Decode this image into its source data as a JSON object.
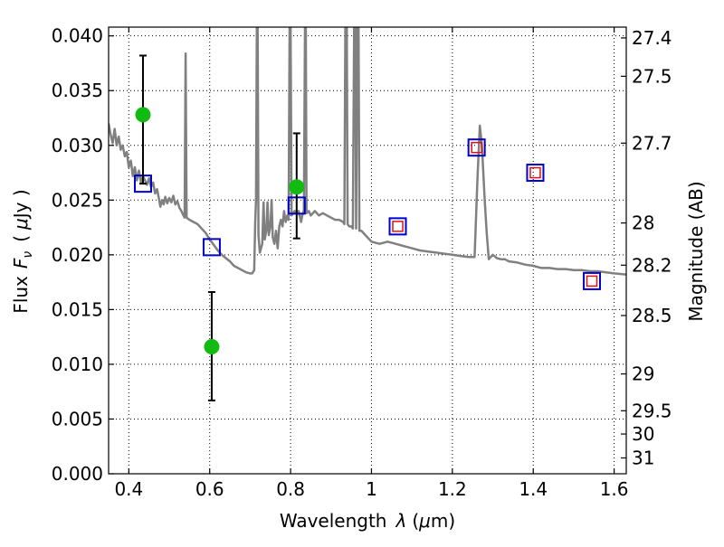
{
  "chart_data": {
    "type": "scatter",
    "xlabel": "Wavelength",
    "xlabel_symbol": "λ",
    "xlabel_unit_open": "(",
    "xlabel_unit_mu": "μ",
    "xlabel_unit_rest": "m)",
    "ylabel": "Flux",
    "ylabel_symbol": "F",
    "ylabel_subscript": "ν",
    "ylabel_unit_open": "(",
    "ylabel_unit_mu": "μ",
    "ylabel_unit_rest": "Jy )",
    "y2label": "Magnitude (AB)",
    "xlim": [
      0.35,
      1.63
    ],
    "ylim": [
      0.0,
      0.0408
    ],
    "grid": true,
    "x_ticks": [
      {
        "value": 0.4,
        "label": "0.4"
      },
      {
        "value": 0.6,
        "label": "0.6"
      },
      {
        "value": 0.8,
        "label": "0.8"
      },
      {
        "value": 1.0,
        "label": "1"
      },
      {
        "value": 1.2,
        "label": "1.2"
      },
      {
        "value": 1.4,
        "label": "1.4"
      },
      {
        "value": 1.6,
        "label": "1.6"
      }
    ],
    "y_ticks": [
      {
        "value": 0.0,
        "label": "0.000"
      },
      {
        "value": 0.005,
        "label": "0.005"
      },
      {
        "value": 0.01,
        "label": "0.010"
      },
      {
        "value": 0.015,
        "label": "0.015"
      },
      {
        "value": 0.02,
        "label": "0.020"
      },
      {
        "value": 0.025,
        "label": "0.025"
      },
      {
        "value": 0.03,
        "label": "0.030"
      },
      {
        "value": 0.035,
        "label": "0.035"
      },
      {
        "value": 0.04,
        "label": "0.040"
      }
    ],
    "y2_ticks": [
      {
        "mag": 27.4,
        "label": "27.4"
      },
      {
        "mag": 27.5,
        "label": "27.5"
      },
      {
        "mag": 27.7,
        "label": "27.7"
      },
      {
        "mag": 28.0,
        "label": "28"
      },
      {
        "mag": 28.2,
        "label": "28.2"
      },
      {
        "mag": 28.5,
        "label": "28.5"
      },
      {
        "mag": 29.0,
        "label": "29"
      },
      {
        "mag": 29.5,
        "label": "29.5"
      },
      {
        "mag": 30.0,
        "label": "30"
      },
      {
        "mag": 31.0,
        "label": "31"
      }
    ],
    "model_spectrum": {
      "color": "#808080",
      "points": [
        [
          0.35,
          0.032
        ],
        [
          0.355,
          0.031
        ],
        [
          0.36,
          0.0302
        ],
        [
          0.365,
          0.0315
        ],
        [
          0.37,
          0.03
        ],
        [
          0.375,
          0.0308
        ],
        [
          0.38,
          0.0296
        ],
        [
          0.385,
          0.03
        ],
        [
          0.39,
          0.029
        ],
        [
          0.395,
          0.0294
        ],
        [
          0.4,
          0.028
        ],
        [
          0.405,
          0.0286
        ],
        [
          0.41,
          0.0272
        ],
        [
          0.415,
          0.028
        ],
        [
          0.42,
          0.0268
        ],
        [
          0.425,
          0.0277
        ],
        [
          0.43,
          0.0266
        ],
        [
          0.435,
          0.0272
        ],
        [
          0.44,
          0.0268
        ],
        [
          0.445,
          0.0264
        ],
        [
          0.45,
          0.027
        ],
        [
          0.455,
          0.0262
        ],
        [
          0.46,
          0.0266
        ],
        [
          0.465,
          0.0256
        ],
        [
          0.47,
          0.026
        ],
        [
          0.475,
          0.025
        ],
        [
          0.478,
          0.0244
        ],
        [
          0.482,
          0.025
        ],
        [
          0.486,
          0.0246
        ],
        [
          0.49,
          0.0253
        ],
        [
          0.495,
          0.0247
        ],
        [
          0.5,
          0.0252
        ],
        [
          0.505,
          0.0248
        ],
        [
          0.51,
          0.0254
        ],
        [
          0.515,
          0.0246
        ],
        [
          0.52,
          0.0249
        ],
        [
          0.525,
          0.0243
        ],
        [
          0.53,
          0.024
        ],
        [
          0.535,
          0.0236
        ],
        [
          0.538,
          0.0234
        ],
        [
          0.5405,
          0.0384
        ],
        [
          0.543,
          0.0234
        ],
        [
          0.55,
          0.0232
        ],
        [
          0.56,
          0.023
        ],
        [
          0.57,
          0.0228
        ],
        [
          0.58,
          0.0224
        ],
        [
          0.59,
          0.022
        ],
        [
          0.6,
          0.0214
        ],
        [
          0.61,
          0.0209
        ],
        [
          0.62,
          0.0204
        ],
        [
          0.63,
          0.02
        ],
        [
          0.64,
          0.0197
        ],
        [
          0.65,
          0.0194
        ],
        [
          0.66,
          0.019
        ],
        [
          0.67,
          0.0188
        ],
        [
          0.68,
          0.0186
        ],
        [
          0.69,
          0.0184
        ],
        [
          0.7,
          0.0183
        ],
        [
          0.705,
          0.0183
        ],
        [
          0.71,
          0.0186
        ],
        [
          0.7125,
          0.023
        ],
        [
          0.7145,
          0.025
        ],
        [
          0.7165,
          0.0408
        ],
        [
          0.7185,
          0.0408
        ],
        [
          0.7205,
          0.0218
        ],
        [
          0.724,
          0.0202
        ],
        [
          0.73,
          0.021
        ],
        [
          0.733,
          0.0248
        ],
        [
          0.736,
          0.0214
        ],
        [
          0.74,
          0.0222
        ],
        [
          0.743,
          0.0248
        ],
        [
          0.746,
          0.0218
        ],
        [
          0.75,
          0.0226
        ],
        [
          0.753,
          0.025
        ],
        [
          0.756,
          0.0216
        ],
        [
          0.76,
          0.021
        ],
        [
          0.764,
          0.0222
        ],
        [
          0.768,
          0.0206
        ],
        [
          0.772,
          0.0226
        ],
        [
          0.776,
          0.0232
        ],
        [
          0.78,
          0.0226
        ],
        [
          0.784,
          0.024
        ],
        [
          0.788,
          0.023
        ],
        [
          0.792,
          0.0236
        ],
        [
          0.795,
          0.0232
        ],
        [
          0.7975,
          0.0408
        ],
        [
          0.8,
          0.0408
        ],
        [
          0.8025,
          0.0236
        ],
        [
          0.806,
          0.0238
        ],
        [
          0.81,
          0.024
        ],
        [
          0.815,
          0.0238
        ],
        [
          0.82,
          0.024
        ],
        [
          0.826,
          0.023
        ],
        [
          0.83,
          0.0238
        ],
        [
          0.833,
          0.024
        ],
        [
          0.8355,
          0.0408
        ],
        [
          0.8375,
          0.0408
        ],
        [
          0.8395,
          0.0238
        ],
        [
          0.845,
          0.024
        ],
        [
          0.85,
          0.0236
        ],
        [
          0.86,
          0.024
        ],
        [
          0.87,
          0.0236
        ],
        [
          0.88,
          0.0238
        ],
        [
          0.89,
          0.0236
        ],
        [
          0.9,
          0.0234
        ],
        [
          0.91,
          0.0232
        ],
        [
          0.92,
          0.0232
        ],
        [
          0.93,
          0.023
        ],
        [
          0.933,
          0.0228
        ],
        [
          0.9355,
          0.0408
        ],
        [
          0.939,
          0.0408
        ],
        [
          0.941,
          0.0228
        ],
        [
          0.945,
          0.0226
        ],
        [
          0.95,
          0.0226
        ],
        [
          0.954,
          0.0224
        ],
        [
          0.957,
          0.0408
        ],
        [
          0.96,
          0.0408
        ],
        [
          0.962,
          0.0224
        ],
        [
          0.965,
          0.0408
        ],
        [
          0.968,
          0.0408
        ],
        [
          0.97,
          0.0222
        ],
        [
          0.975,
          0.0222
        ],
        [
          0.98,
          0.022
        ],
        [
          0.99,
          0.0216
        ],
        [
          1.0,
          0.0212
        ],
        [
          1.02,
          0.021
        ],
        [
          1.04,
          0.0212
        ],
        [
          1.06,
          0.021
        ],
        [
          1.08,
          0.0208
        ],
        [
          1.1,
          0.0206
        ],
        [
          1.12,
          0.0204
        ],
        [
          1.14,
          0.0203
        ],
        [
          1.16,
          0.0202
        ],
        [
          1.18,
          0.0201
        ],
        [
          1.2,
          0.02
        ],
        [
          1.22,
          0.0199
        ],
        [
          1.24,
          0.0198
        ],
        [
          1.255,
          0.0198
        ],
        [
          1.262,
          0.027
        ],
        [
          1.268,
          0.0318
        ],
        [
          1.273,
          0.03
        ],
        [
          1.28,
          0.025
        ],
        [
          1.285,
          0.022
        ],
        [
          1.29,
          0.0196
        ],
        [
          1.3,
          0.02
        ],
        [
          1.31,
          0.0197
        ],
        [
          1.32,
          0.0196
        ],
        [
          1.33,
          0.0196
        ],
        [
          1.34,
          0.0194
        ],
        [
          1.36,
          0.0193
        ],
        [
          1.38,
          0.0191
        ],
        [
          1.4,
          0.019
        ],
        [
          1.42,
          0.0188
        ],
        [
          1.44,
          0.0188
        ],
        [
          1.46,
          0.0187
        ],
        [
          1.48,
          0.0187
        ],
        [
          1.5,
          0.0186
        ],
        [
          1.52,
          0.0186
        ],
        [
          1.54,
          0.0185
        ],
        [
          1.56,
          0.0185
        ],
        [
          1.58,
          0.0184
        ],
        [
          1.6,
          0.0183
        ],
        [
          1.63,
          0.0182
        ]
      ]
    },
    "observed": {
      "color": "#11bb11",
      "points": [
        {
          "x": 0.435,
          "y": 0.0328,
          "yerr": [
            0.0265,
            0.0382
          ]
        },
        {
          "x": 0.605,
          "y": 0.0116,
          "yerr": [
            0.0067,
            0.0166
          ]
        },
        {
          "x": 0.815,
          "y": 0.0262,
          "yerr": [
            0.0215,
            0.0311
          ]
        }
      ]
    },
    "model_photometry": {
      "color": "#0000cc",
      "points": [
        {
          "x": 0.435,
          "y": 0.0265
        },
        {
          "x": 0.605,
          "y": 0.0207
        },
        {
          "x": 0.815,
          "y": 0.0245
        },
        {
          "x": 1.065,
          "y": 0.0226
        },
        {
          "x": 1.26,
          "y": 0.0298
        },
        {
          "x": 1.405,
          "y": 0.0275
        },
        {
          "x": 1.545,
          "y": 0.0176
        }
      ]
    },
    "inner_photometry": {
      "color": "#dd1111",
      "points": [
        {
          "x": 1.065,
          "y": 0.0226
        },
        {
          "x": 1.26,
          "y": 0.0298
        },
        {
          "x": 1.405,
          "y": 0.0275
        },
        {
          "x": 1.545,
          "y": 0.0176
        }
      ]
    }
  }
}
